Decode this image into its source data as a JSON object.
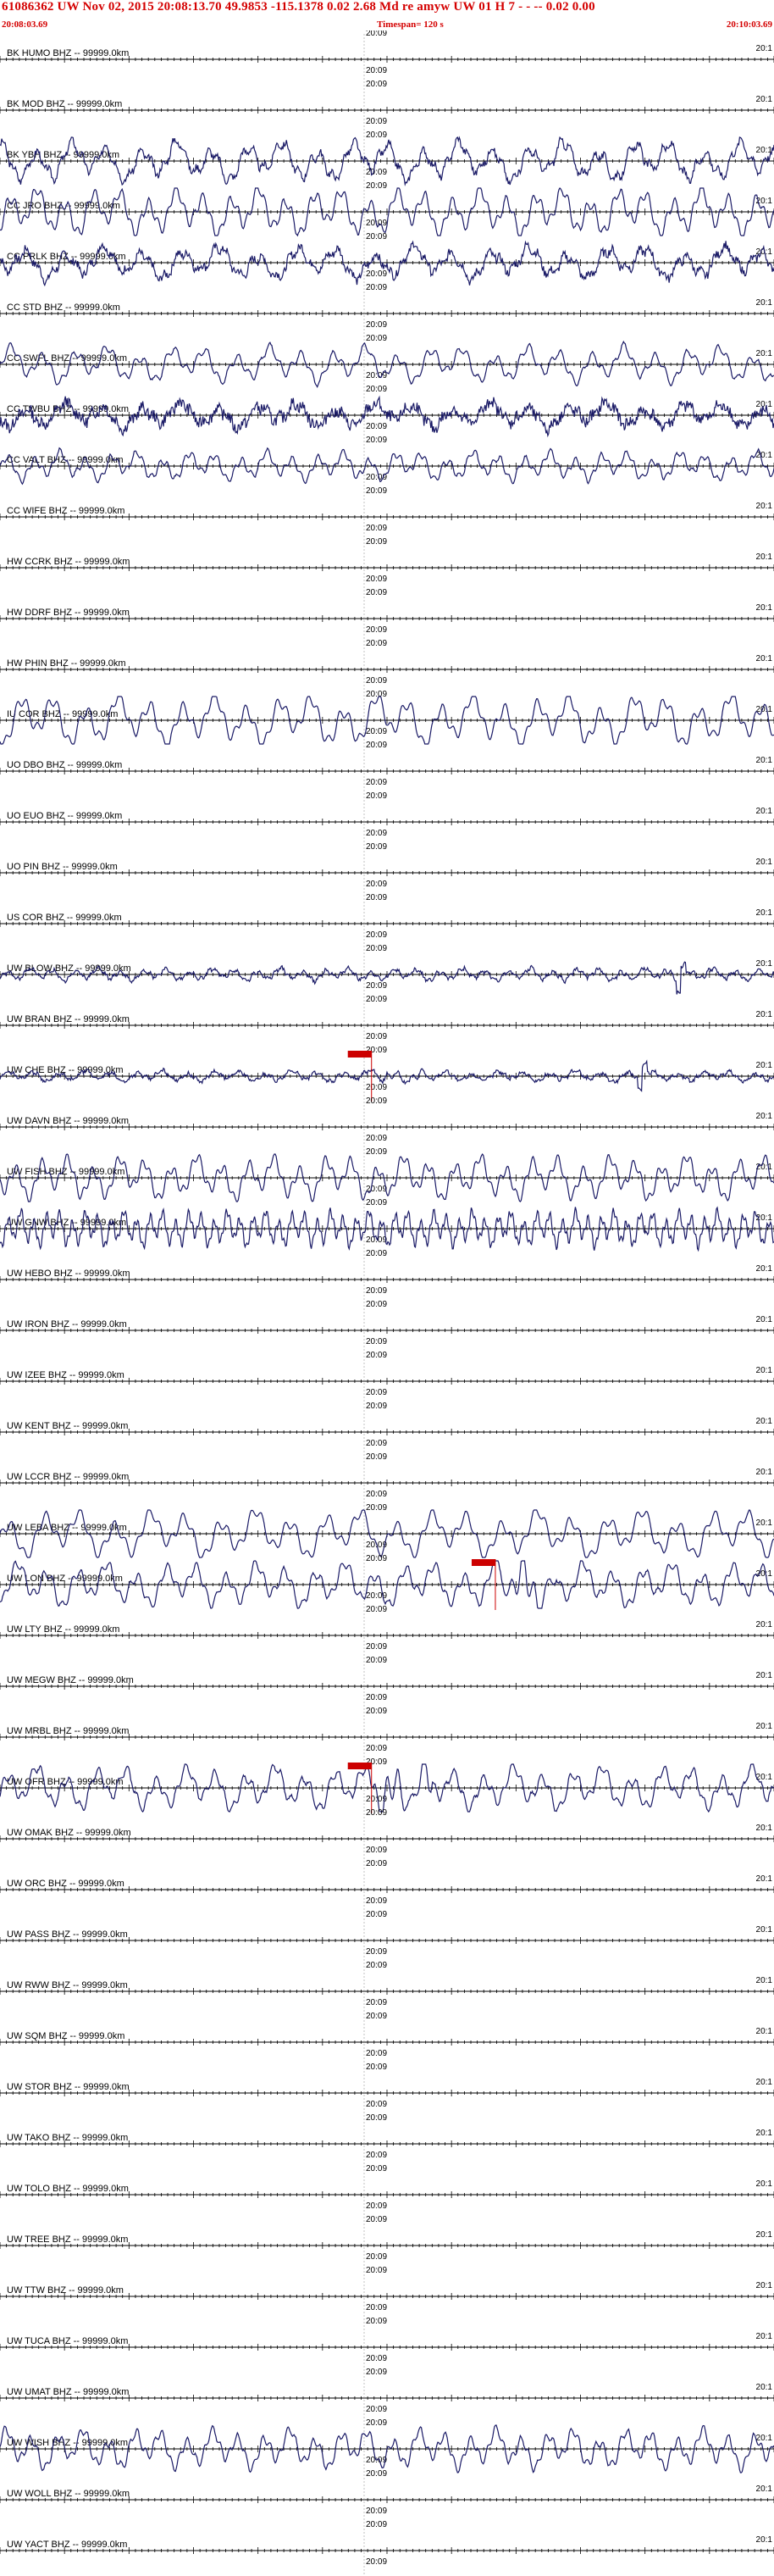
{
  "header": {
    "title": "61086362 UW Nov 02, 2015 20:08:13.70   49.9853 -115.1378  0.02 2.68 Md re    amyw     UW 01 H    7  - - --   0.02 0.00",
    "start_time": "20:08:03.69",
    "timespan": "Timespan= 120 s",
    "end_time": "20:10:03.69"
  },
  "colors": {
    "header_text": "#d40000",
    "trace": "#1a1a66",
    "axis": "#000000",
    "pick": "#cc0000"
  },
  "traces": [
    {
      "label": "BK HUMO BHZ -- 99999.0km",
      "time": "20:09",
      "end": "20:1",
      "active": false
    },
    {
      "label": "BK MOD BHZ -- 99999.0km",
      "time": "20:09",
      "end": "20:1",
      "active": false
    },
    {
      "label": "BK YBH BHZ -- 99999.0km",
      "time": "20:09",
      "end": "20:1",
      "active": true,
      "amp": 22,
      "freq": 22,
      "noise": 4,
      "seed": 3
    },
    {
      "label": "CC JRO BHZ -- 99999.0km",
      "time": "20:09",
      "end": "20:1",
      "active": true,
      "amp": 26,
      "freq": 28,
      "noise": 1,
      "seed": 5
    },
    {
      "label": "CC PRLK BHZ -- 99999.0km",
      "time": "20:09",
      "end": "20:1",
      "active": true,
      "amp": 18,
      "freq": 20,
      "noise": 5,
      "seed": 7
    },
    {
      "label": "CC STD BHZ -- 99999.0km",
      "time": "20:09",
      "end": "20:1",
      "active": false
    },
    {
      "label": "CC SWFL BHZ -- 99999.0km",
      "time": "20:09",
      "end": "20:1",
      "active": true,
      "amp": 20,
      "freq": 24,
      "noise": 1,
      "seed": 11
    },
    {
      "label": "CC TWBU BHZ -- 99999.0km",
      "time": "20:09",
      "end": "20:1",
      "active": true,
      "amp": 14,
      "freq": 20,
      "noise": 7,
      "seed": 13
    },
    {
      "label": "CC VALT BHZ -- 99999.0km",
      "time": "20:09",
      "end": "20:1",
      "active": true,
      "amp": 16,
      "freq": 30,
      "noise": 1,
      "seed": 17
    },
    {
      "label": "CC WIFE BHZ -- 99999.0km",
      "time": "20:09",
      "end": "20:1",
      "active": false
    },
    {
      "label": "HW CCRK BHZ -- 99999.0km",
      "time": "20:09",
      "end": "20:1",
      "active": false
    },
    {
      "label": "HW DDRF BHZ -- 99999.0km",
      "time": "20:09",
      "end": "20:1",
      "active": false
    },
    {
      "label": "HW PHIN BHZ -- 99999.0km",
      "time": "20:09",
      "end": "20:1",
      "active": false
    },
    {
      "label": "IU COR BHZ -- 99999.0km",
      "time": "20:09",
      "end": "20:1",
      "active": true,
      "amp": 28,
      "freq": 24,
      "noise": 0.5,
      "seed": 19
    },
    {
      "label": "UO DBO BHZ -- 99999.0km",
      "time": "20:09",
      "end": "20:1",
      "active": false
    },
    {
      "label": "UO EUO BHZ -- 99999.0km",
      "time": "20:09",
      "end": "20:1",
      "active": false
    },
    {
      "label": "UO PIN BHZ -- 99999.0km",
      "time": "20:09",
      "end": "20:1",
      "active": false
    },
    {
      "label": "US COR BHZ -- 99999.0km",
      "time": "20:09",
      "end": "20:1",
      "active": false
    },
    {
      "label": "UW BLOW BHZ -- 99999.0km",
      "time": "20:09",
      "end": "20:1",
      "active": true,
      "amp": 7,
      "freq": 34,
      "noise": 2,
      "seed": 23,
      "spike": 0.88
    },
    {
      "label": "UW BRAN BHZ -- 99999.0km",
      "time": "20:09",
      "end": "20:1",
      "active": false
    },
    {
      "label": "UW CHE BHZ -- 99999.0km",
      "time": "20:09",
      "end": "20:1",
      "active": true,
      "amp": 6,
      "freq": 30,
      "noise": 2,
      "seed": 29,
      "pick": 0.48,
      "spike": 0.83
    },
    {
      "label": "UW DAVN BHZ -- 99999.0km",
      "time": "20:09",
      "end": "20:1",
      "active": false
    },
    {
      "label": "UW FISH BHZ -- 99999.0km",
      "time": "20:09",
      "end": "20:1",
      "active": true,
      "amp": 24,
      "freq": 30,
      "noise": 0.5,
      "seed": 31
    },
    {
      "label": "UW GNW BHZ -- 99999.0km",
      "time": "20:09",
      "end": "20:1",
      "active": true,
      "amp": 20,
      "freq": 60,
      "noise": 1,
      "seed": 37
    },
    {
      "label": "UW HEBO BHZ -- 99999.0km",
      "time": "20:09",
      "end": "20:1",
      "active": false
    },
    {
      "label": "UW IRON BHZ -- 99999.0km",
      "time": "20:09",
      "end": "20:1",
      "active": false
    },
    {
      "label": "UW IZEE BHZ -- 99999.0km",
      "time": "20:09",
      "end": "20:1",
      "active": false
    },
    {
      "label": "UW KENT BHZ -- 99999.0km",
      "time": "20:09",
      "end": "20:1",
      "active": false
    },
    {
      "label": "UW LCCR BHZ -- 99999.0km",
      "time": "20:09",
      "end": "20:1",
      "active": false
    },
    {
      "label": "UW LEBA BHZ -- 99999.0km",
      "time": "20:09",
      "end": "20:1",
      "active": true,
      "amp": 26,
      "freq": 22,
      "noise": 0.5,
      "seed": 41
    },
    {
      "label": "UW LON BHZ -- 99999.0km",
      "time": "20:09",
      "end": "20:1",
      "active": true,
      "amp": 24,
      "freq": 26,
      "noise": 1,
      "seed": 43,
      "pick": 0.64
    },
    {
      "label": "UW LTY BHZ -- 99999.0km",
      "time": "20:09",
      "end": "20:1",
      "active": false
    },
    {
      "label": "UW MEGW BHZ -- 99999.0km",
      "time": "20:09",
      "end": "20:1",
      "active": false
    },
    {
      "label": "UW MRBL BHZ -- 99999.0km",
      "time": "20:09",
      "end": "20:1",
      "active": false
    },
    {
      "label": "UW OFR BHZ -- 99999.0km",
      "time": "20:09",
      "end": "20:1",
      "active": true,
      "amp": 24,
      "freq": 26,
      "noise": 1.5,
      "seed": 47,
      "pick": 0.48
    },
    {
      "label": "UW OMAK BHZ -- 99999.0km",
      "time": "20:09",
      "end": "20:1",
      "active": false
    },
    {
      "label": "UW ORC BHZ -- 99999.0km",
      "time": "20:09",
      "end": "20:1",
      "active": false
    },
    {
      "label": "UW PASS BHZ -- 99999.0km",
      "time": "20:09",
      "end": "20:1",
      "active": false
    },
    {
      "label": "UW RWW BHZ -- 99999.0km",
      "time": "20:09",
      "end": "20:1",
      "active": false
    },
    {
      "label": "UW SQM BHZ -- 99999.0km",
      "time": "20:09",
      "end": "20:1",
      "active": false
    },
    {
      "label": "UW STOR BHZ -- 99999.0km",
      "time": "20:09",
      "end": "20:1",
      "active": false
    },
    {
      "label": "UW TAKO BHZ -- 99999.0km",
      "time": "20:09",
      "end": "20:1",
      "active": false
    },
    {
      "label": "UW TOLO BHZ -- 99999.0km",
      "time": "20:09",
      "end": "20:1",
      "active": false
    },
    {
      "label": "UW TREE BHZ -- 99999.0km",
      "time": "20:09",
      "end": "20:1",
      "active": false
    },
    {
      "label": "UW TTW BHZ -- 99999.0km",
      "time": "20:09",
      "end": "20:1",
      "active": false
    },
    {
      "label": "UW TUCA BHZ -- 99999.0km",
      "time": "20:09",
      "end": "20:1",
      "active": false
    },
    {
      "label": "UW UMAT BHZ -- 99999.0km",
      "time": "20:09",
      "end": "20:1",
      "active": false
    },
    {
      "label": "UW WISH BHZ -- 99999.0km",
      "time": "20:09",
      "end": "20:1",
      "active": true,
      "amp": 22,
      "freq": 30,
      "noise": 1,
      "seed": 53
    },
    {
      "label": "UW WOLL BHZ -- 99999.0km",
      "time": "20:09",
      "end": "20:1",
      "active": false
    },
    {
      "label": "UW YACT BHZ -- 99999.0km",
      "time": "20:09",
      "end": "20:1",
      "active": false
    }
  ]
}
